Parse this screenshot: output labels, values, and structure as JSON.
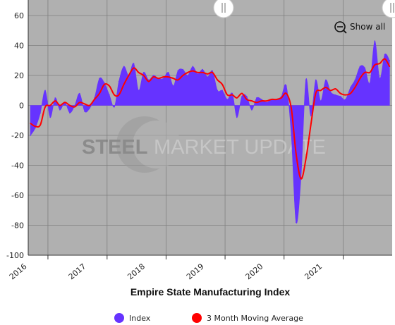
{
  "chart_data": {
    "type": "area",
    "xlabel": "Empire State Manufacturing Index",
    "ylabel": "",
    "ylim": [
      -100,
      60
    ],
    "yticks": [
      60,
      40,
      20,
      0,
      -20,
      -40,
      -60,
      -80,
      -100
    ],
    "x_range": [
      "2015-09-01",
      "2021-10-31"
    ],
    "x_tick_labels": [
      "2016",
      "2017",
      "2018",
      "2019",
      "2020",
      "2021"
    ],
    "grid": true,
    "legend_placement": "bottom",
    "series": [
      {
        "name": "Index",
        "style": "area",
        "color": "#6633FF",
        "x": [
          "2015-09",
          "2015-10",
          "2015-11",
          "2015-12",
          "2016-01",
          "2016-02",
          "2016-03",
          "2016-04",
          "2016-05",
          "2016-06",
          "2016-07",
          "2016-08",
          "2016-09",
          "2016-10",
          "2016-11",
          "2016-12",
          "2017-01",
          "2017-02",
          "2017-03",
          "2017-04",
          "2017-05",
          "2017-06",
          "2017-07",
          "2017-08",
          "2017-09",
          "2017-10",
          "2017-11",
          "2017-12",
          "2018-01",
          "2018-02",
          "2018-03",
          "2018-04",
          "2018-05",
          "2018-06",
          "2018-07",
          "2018-08",
          "2018-09",
          "2018-10",
          "2018-11",
          "2018-12",
          "2019-01",
          "2019-02",
          "2019-03",
          "2019-04",
          "2019-05",
          "2019-06",
          "2019-07",
          "2019-08",
          "2019-09",
          "2019-10",
          "2019-11",
          "2019-12",
          "2020-01",
          "2020-02",
          "2020-03",
          "2020-04",
          "2020-05",
          "2020-06",
          "2020-07",
          "2020-08",
          "2020-09",
          "2020-10",
          "2020-11",
          "2020-12",
          "2021-01",
          "2021-02",
          "2021-03",
          "2021-04",
          "2021-05",
          "2021-06",
          "2021-07",
          "2021-08",
          "2021-09",
          "2021-10"
        ],
        "values": [
          -20,
          -15,
          -5,
          10,
          -8,
          5,
          -3,
          2,
          -5,
          0,
          8,
          -4,
          -2,
          5,
          18,
          15,
          7,
          -1,
          16,
          26,
          20,
          28,
          10,
          22,
          17,
          20,
          18,
          18,
          22,
          13,
          23,
          24,
          20,
          26,
          21,
          24,
          19,
          23,
          10,
          10,
          4,
          8,
          -8,
          6,
          6,
          -3,
          5,
          4,
          2,
          4,
          4,
          6,
          13,
          -20,
          -78,
          -48,
          17,
          -7,
          17,
          3,
          17,
          9,
          7,
          6,
          4,
          12,
          17,
          26,
          25,
          15,
          43,
          18,
          34,
          30
        ]
      },
      {
        "name": "3 Month Moving Average",
        "style": "line",
        "color": "#FF0000",
        "x": [
          "2015-09",
          "2015-10",
          "2015-11",
          "2015-12",
          "2016-01",
          "2016-02",
          "2016-03",
          "2016-04",
          "2016-05",
          "2016-06",
          "2016-07",
          "2016-08",
          "2016-09",
          "2016-10",
          "2016-11",
          "2016-12",
          "2017-01",
          "2017-02",
          "2017-03",
          "2017-04",
          "2017-05",
          "2017-06",
          "2017-07",
          "2017-08",
          "2017-09",
          "2017-10",
          "2017-11",
          "2017-12",
          "2018-01",
          "2018-02",
          "2018-03",
          "2018-04",
          "2018-05",
          "2018-06",
          "2018-07",
          "2018-08",
          "2018-09",
          "2018-10",
          "2018-11",
          "2018-12",
          "2019-01",
          "2019-02",
          "2019-03",
          "2019-04",
          "2019-05",
          "2019-06",
          "2019-07",
          "2019-08",
          "2019-09",
          "2019-10",
          "2019-11",
          "2019-12",
          "2020-01",
          "2020-02",
          "2020-03",
          "2020-04",
          "2020-05",
          "2020-06",
          "2020-07",
          "2020-08",
          "2020-09",
          "2020-10",
          "2020-11",
          "2020-12",
          "2021-01",
          "2021-02",
          "2021-03",
          "2021-04",
          "2021-05",
          "2021-06",
          "2021-07",
          "2021-08",
          "2021-09",
          "2021-10"
        ],
        "values": [
          -12,
          -14,
          -13,
          -1,
          0,
          3,
          0,
          2,
          0,
          -1,
          2,
          1,
          0,
          4,
          8,
          14,
          13,
          7,
          7,
          14,
          20,
          25,
          22,
          20,
          16,
          19,
          18,
          19,
          19,
          18,
          17,
          20,
          22,
          23,
          22,
          22,
          21,
          22,
          17,
          14,
          7,
          7,
          5,
          8,
          4,
          3,
          2,
          3,
          3,
          4,
          4,
          5,
          8,
          -2,
          -32,
          -49,
          -36,
          -13,
          8,
          10,
          12,
          10,
          11,
          8,
          7,
          8,
          12,
          18,
          22,
          22,
          27,
          28,
          31,
          26
        ]
      }
    ]
  },
  "controls": {
    "show_all_label": "Show all",
    "zoom_icon": "zoom-out-icon",
    "navigator_handles": [
      "range-handle-left-icon",
      "range-handle-right-icon"
    ]
  },
  "watermark": {
    "word_bold": "STEEL",
    "word_rest": "MARKET UPDATE"
  },
  "colors": {
    "plot_background": "#b0b0b0",
    "grid": "#808080",
    "index_fill": "#6633FF",
    "moving_average": "#FF0000"
  }
}
